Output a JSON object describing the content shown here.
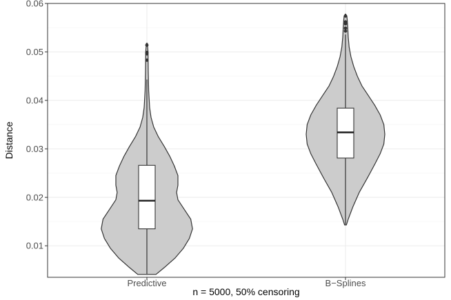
{
  "chart_data": {
    "type": "violin",
    "xlabel": "n = 5000, 50% censoring",
    "ylabel": "Distance",
    "ylim": [
      0.0035,
      0.06
    ],
    "yticks": [
      0.01,
      0.02,
      0.03,
      0.04,
      0.05,
      0.06
    ],
    "ytick_labels": [
      "0.01",
      "0.02",
      "0.03",
      "0.04",
      "0.05",
      "0.06"
    ],
    "categories": [
      "Predictive",
      "B−Splines"
    ],
    "grid": true,
    "legend": "none",
    "colors": {
      "violin_fill": "#cccccc",
      "violin_stroke": "#333333",
      "box_fill": "#ffffff",
      "grid": "#ebebeb"
    },
    "series": [
      {
        "category": "Predictive",
        "box": {
          "q1": 0.0135,
          "median": 0.0193,
          "q3": 0.0266,
          "whisker_low": 0.0042,
          "whisker_high": 0.0443
        },
        "outliers": [
          0.0496,
          0.0499,
          0.0483,
          0.0514
        ],
        "density": [
          [
            0.0041,
            0.2
          ],
          [
            0.0055,
            0.38
          ],
          [
            0.0075,
            0.62
          ],
          [
            0.0095,
            0.8
          ],
          [
            0.0115,
            0.93
          ],
          [
            0.0135,
            1.0
          ],
          [
            0.0155,
            0.96
          ],
          [
            0.0175,
            0.82
          ],
          [
            0.0195,
            0.68
          ],
          [
            0.021,
            0.65
          ],
          [
            0.0225,
            0.68
          ],
          [
            0.0245,
            0.68
          ],
          [
            0.0265,
            0.6
          ],
          [
            0.0285,
            0.5
          ],
          [
            0.0305,
            0.38
          ],
          [
            0.0325,
            0.25
          ],
          [
            0.0345,
            0.15
          ],
          [
            0.0365,
            0.09
          ],
          [
            0.0385,
            0.06
          ],
          [
            0.042,
            0.04
          ],
          [
            0.046,
            0.03
          ],
          [
            0.05,
            0.025
          ],
          [
            0.0518,
            0.01
          ]
        ]
      },
      {
        "category": "B−Splines",
        "box": {
          "q1": 0.0281,
          "median": 0.0334,
          "q3": 0.0384,
          "whisker_low": 0.0143,
          "whisker_high": 0.0536
        },
        "outliers": [
          0.0543,
          0.0549,
          0.0558,
          0.0562,
          0.0574
        ],
        "density": [
          [
            0.0143,
            0.02
          ],
          [
            0.0155,
            0.06
          ],
          [
            0.018,
            0.16
          ],
          [
            0.021,
            0.3
          ],
          [
            0.024,
            0.48
          ],
          [
            0.027,
            0.65
          ],
          [
            0.029,
            0.76
          ],
          [
            0.031,
            0.84
          ],
          [
            0.033,
            0.86
          ],
          [
            0.035,
            0.84
          ],
          [
            0.037,
            0.76
          ],
          [
            0.039,
            0.64
          ],
          [
            0.041,
            0.5
          ],
          [
            0.043,
            0.36
          ],
          [
            0.045,
            0.26
          ],
          [
            0.047,
            0.18
          ],
          [
            0.049,
            0.12
          ],
          [
            0.051,
            0.08
          ],
          [
            0.053,
            0.06
          ],
          [
            0.055,
            0.05
          ],
          [
            0.0565,
            0.04
          ],
          [
            0.0574,
            0.03
          ],
          [
            0.0578,
            0.005
          ]
        ]
      }
    ]
  }
}
